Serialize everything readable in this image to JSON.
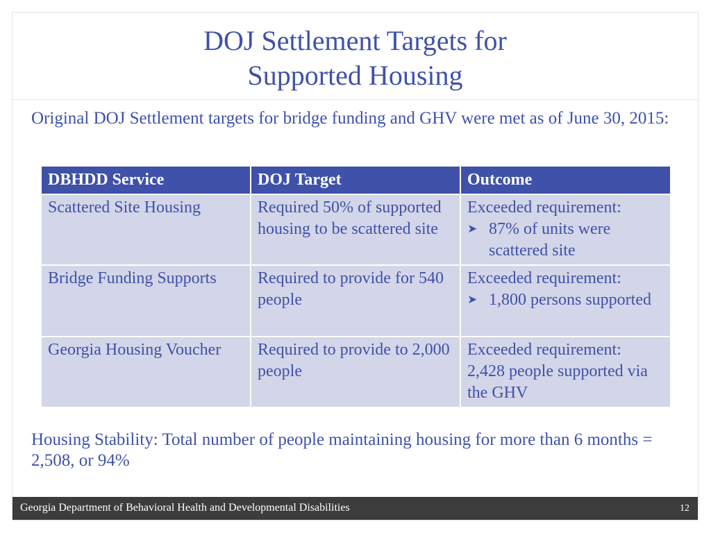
{
  "slide": {
    "title_line1": "DOJ Settlement Targets for",
    "title_line2": "Supported Housing",
    "intro": "Original DOJ Settlement targets for bridge funding and GHV were met as of June 30, 2015:",
    "table": {
      "headers": [
        "DBHDD Service",
        "DOJ Target",
        "Outcome"
      ],
      "rows": [
        {
          "service": "Scattered Site Housing",
          "target": "Required 50% of supported housing to be scattered site",
          "outcome_lead": "Exceeded requirement:",
          "outcome_bullet": "87% of units were scattered site"
        },
        {
          "service": "Bridge Funding Supports",
          "target": "Required to provide for 540 people",
          "outcome_lead": "Exceeded requirement:",
          "outcome_bullet": "1,800 persons supported"
        },
        {
          "service": "Georgia Housing Voucher",
          "target": "Required to provide to 2,000 people",
          "outcome_lead": "Exceeded requirement:",
          "outcome_text": "2,428 people supported via the GHV"
        }
      ]
    },
    "stability": "Housing Stability: Total number of people maintaining housing for more than 6 months = 2,508, or 94%",
    "bullet_icon": "arrow-bullet-icon"
  },
  "footer": {
    "organization": "Georgia Department of Behavioral Health and Developmental Disabilities",
    "page_number": "12"
  },
  "colors": {
    "accent": "#3f51a8",
    "row_fill": "#d3d5e8",
    "footer_bg": "#3c3c3c"
  }
}
